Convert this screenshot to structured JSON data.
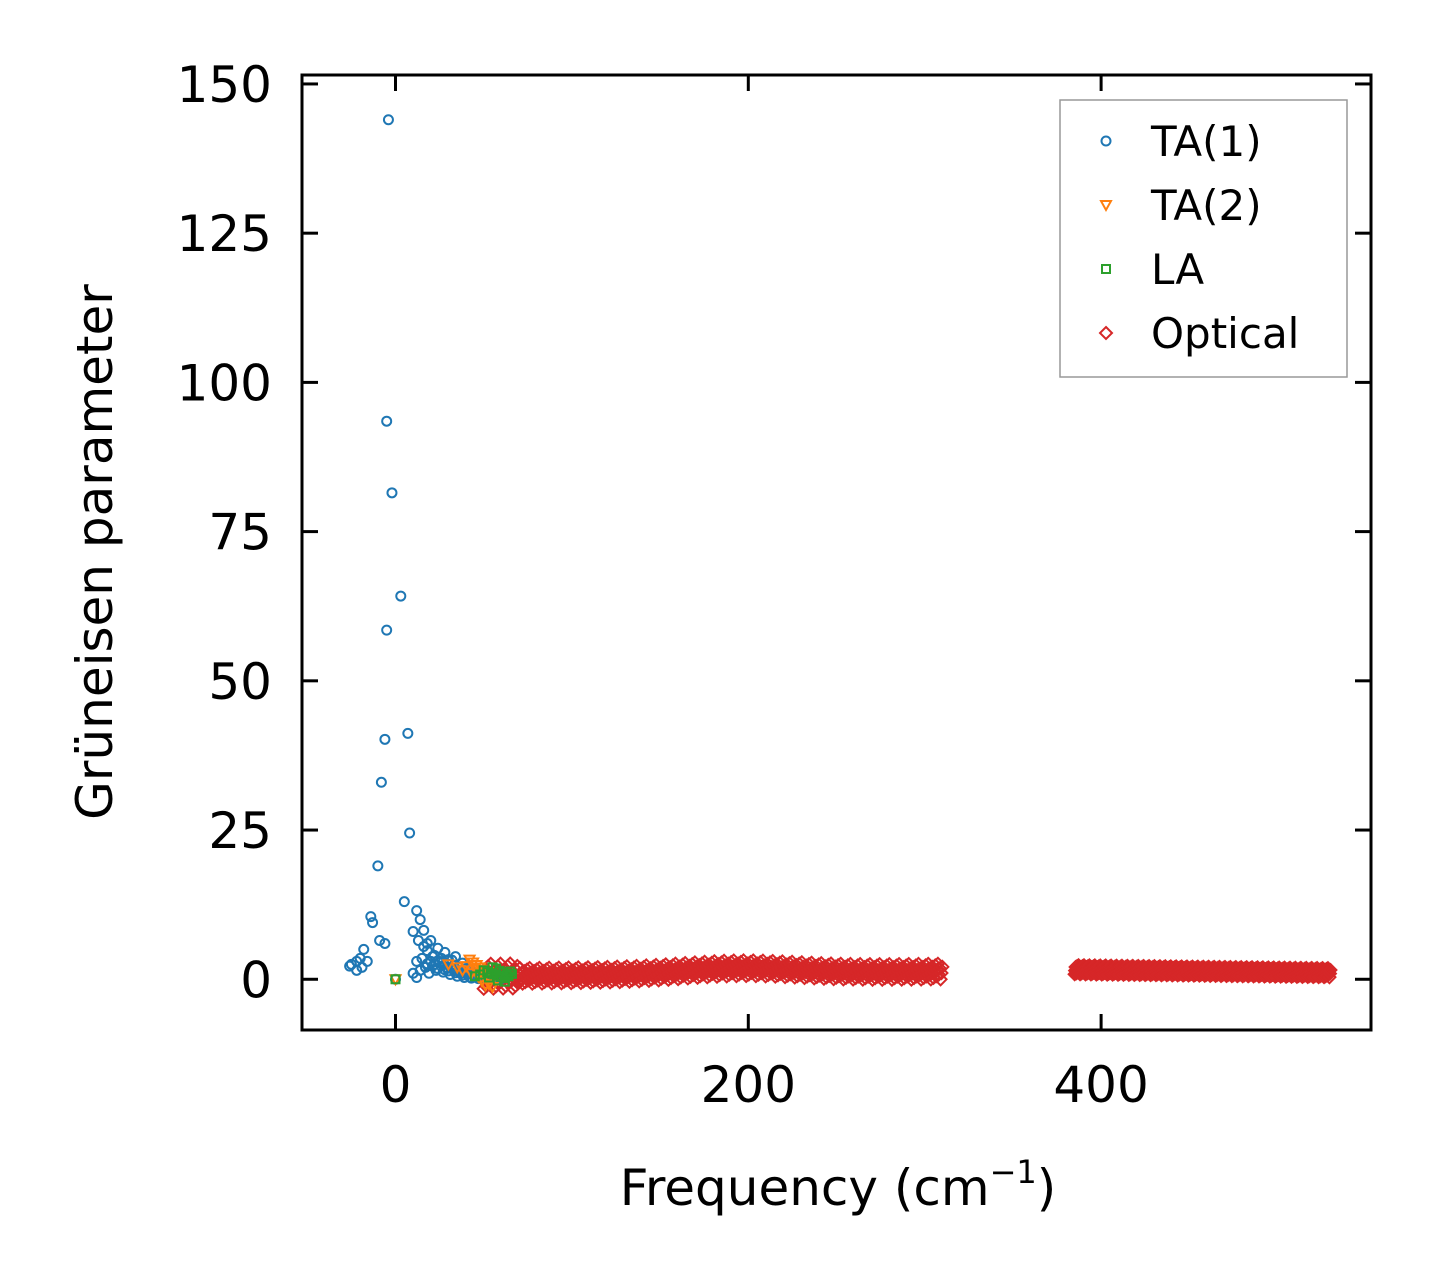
{
  "chart_data": {
    "type": "scatter",
    "xlabel": "Frequency (cm",
    "xlabel_sup": "−1",
    "xlabel_end": ")",
    "ylabel": "Grüneisen parameter",
    "xlim": [
      -53,
      553
    ],
    "ylim": [
      -8.5,
      151.5
    ],
    "xticks": [
      0,
      200,
      400
    ],
    "yticks": [
      0,
      25,
      50,
      75,
      100,
      125,
      150
    ],
    "legend_position": "top-right",
    "grid": false,
    "series": [
      {
        "name": "TA(1)",
        "marker": "circle",
        "color": "#1f77b4",
        "points": [
          [
            -4,
            144
          ],
          [
            -5,
            93.5
          ],
          [
            -2,
            81.5
          ],
          [
            3,
            64.2
          ],
          [
            -5,
            58.5
          ],
          [
            7,
            41.2
          ],
          [
            -6,
            40.2
          ],
          [
            -8,
            33
          ],
          [
            8,
            24.5
          ],
          [
            -10,
            19
          ],
          [
            5,
            13
          ],
          [
            12,
            11.5
          ],
          [
            -14,
            10.5
          ],
          [
            -13,
            9.5
          ],
          [
            14,
            10
          ],
          [
            16,
            8.2
          ],
          [
            10,
            8
          ],
          [
            -9,
            6.5
          ],
          [
            -6,
            6
          ],
          [
            13,
            6.5
          ],
          [
            18,
            6
          ],
          [
            -18,
            5
          ],
          [
            -22,
            3
          ],
          [
            -20,
            3.5
          ],
          [
            -25,
            2.5
          ],
          [
            -19,
            2
          ],
          [
            -22,
            1.5
          ],
          [
            -16,
            3
          ],
          [
            -26,
            2.2
          ],
          [
            12,
            3
          ],
          [
            14,
            1.5
          ],
          [
            10,
            1
          ],
          [
            0,
            0
          ],
          [
            12,
            0.3
          ],
          [
            16,
            5.5
          ],
          [
            18,
            4.8
          ],
          [
            20,
            6.5
          ],
          [
            22,
            4
          ],
          [
            24,
            5.2
          ],
          [
            26,
            3.5
          ],
          [
            28,
            4.5
          ],
          [
            30,
            2.5
          ],
          [
            32,
            3.2
          ],
          [
            34,
            3.8
          ],
          [
            36,
            2
          ],
          [
            38,
            2.7
          ],
          [
            40,
            1.8
          ],
          [
            42,
            1.5
          ],
          [
            44,
            1.2
          ],
          [
            46,
            1
          ],
          [
            48,
            0.8
          ],
          [
            50,
            0.6
          ],
          [
            52,
            0.5
          ],
          [
            54,
            0.4
          ],
          [
            56,
            0.3
          ],
          [
            58,
            0.2
          ],
          [
            60,
            0.1
          ],
          [
            17,
            2
          ],
          [
            19,
            1
          ],
          [
            21,
            2.2
          ],
          [
            23,
            1.5
          ],
          [
            25,
            2.8
          ],
          [
            27,
            1.2
          ],
          [
            29,
            2
          ],
          [
            31,
            0.8
          ],
          [
            33,
            1.5
          ],
          [
            35,
            0.5
          ],
          [
            37,
            1
          ],
          [
            39,
            0.3
          ],
          [
            41,
            0.9
          ],
          [
            43,
            0.2
          ],
          [
            45,
            0.6
          ],
          [
            47,
            0.1
          ],
          [
            49,
            0.4
          ],
          [
            51,
            0.2
          ],
          [
            53,
            0.1
          ],
          [
            20,
            3
          ],
          [
            22,
            2.5
          ],
          [
            24,
            1.8
          ],
          [
            26,
            2.2
          ],
          [
            28,
            1.6
          ],
          [
            30,
            1.4
          ],
          [
            32,
            1.9
          ],
          [
            34,
            1.1
          ],
          [
            36,
            1.3
          ],
          [
            38,
            0.7
          ],
          [
            40,
            1
          ],
          [
            42,
            0.4
          ],
          [
            44,
            0.7
          ],
          [
            46,
            0.3
          ],
          [
            15,
            3.5
          ],
          [
            18,
            2.6
          ],
          [
            21,
            3.8
          ],
          [
            24,
            3.1
          ],
          [
            27,
            2.9
          ],
          [
            30,
            3.3
          ],
          [
            33,
            2.3
          ]
        ]
      },
      {
        "name": "TA(2)",
        "marker": "triangle-down",
        "color": "#ff7f0e",
        "points": [
          [
            0,
            0
          ],
          [
            42,
            3.3
          ],
          [
            44,
            2.8
          ],
          [
            46,
            2.4
          ],
          [
            48,
            2
          ],
          [
            50,
            1.6
          ],
          [
            52,
            1.2
          ],
          [
            54,
            0.8
          ],
          [
            56,
            0.5
          ],
          [
            40,
            2.2
          ],
          [
            45,
            1.8
          ],
          [
            50,
            0.6
          ],
          [
            53,
            -0.8
          ],
          [
            55,
            -1.3
          ],
          [
            30,
            2.5
          ],
          [
            35,
            2
          ],
          [
            38,
            1.5
          ],
          [
            43,
            1
          ],
          [
            47,
            0.4
          ],
          [
            49,
            -0.3
          ],
          [
            51,
            -1
          ]
        ]
      },
      {
        "name": "LA",
        "marker": "square",
        "color": "#2ca02c",
        "points": [
          [
            0,
            0
          ],
          [
            50,
            1.5
          ],
          [
            52,
            1.2
          ],
          [
            54,
            1
          ],
          [
            56,
            0.8
          ],
          [
            58,
            0.6
          ],
          [
            60,
            0.4
          ],
          [
            62,
            0.2
          ],
          [
            64,
            0.5
          ],
          [
            66,
            0.9
          ],
          [
            55,
            2
          ],
          [
            57,
            1.8
          ],
          [
            59,
            1.4
          ],
          [
            61,
            1.1
          ],
          [
            63,
            0.7
          ],
          [
            65,
            1.3
          ],
          [
            48,
            0.8
          ],
          [
            45,
            0.5
          ],
          [
            53,
            0.3
          ],
          [
            58,
            -0.2
          ],
          [
            62,
            -0.4
          ]
        ]
      },
      {
        "name": "Optical",
        "marker": "diamond",
        "color": "#d62728",
        "bands": [
          {
            "x": [
              50,
              310
            ],
            "center": [
              0.5,
              1.3
            ],
            "spread": 2.6
          },
          {
            "x": [
              385,
              530
            ],
            "center": [
              1.6,
              1.1
            ],
            "spread": 1.5
          }
        ]
      }
    ]
  }
}
